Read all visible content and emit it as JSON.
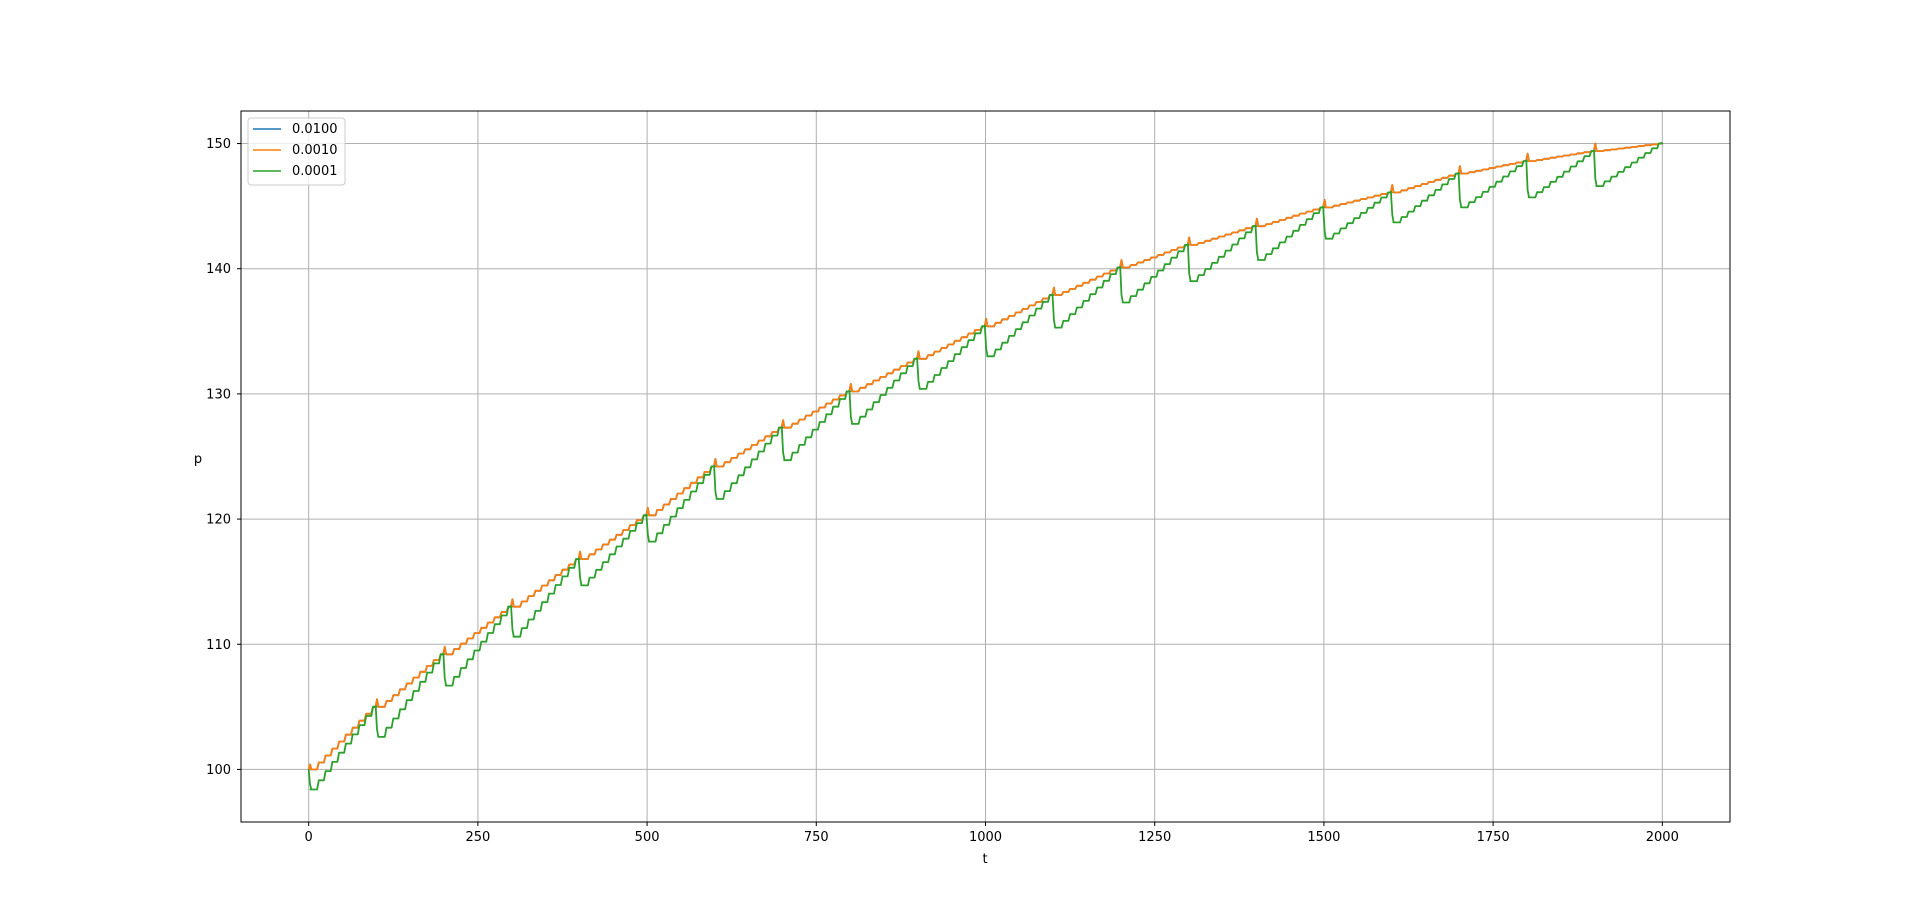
{
  "chart_data": {
    "type": "line",
    "title": "",
    "xlabel": "t",
    "ylabel": "p",
    "xlim": [
      -100,
      2100
    ],
    "ylim": [
      95.8,
      152.6
    ],
    "xticks": [
      0,
      250,
      500,
      750,
      1000,
      1250,
      1500,
      1750,
      2000
    ],
    "yticks": [
      100,
      110,
      120,
      130,
      140,
      150
    ],
    "xtick_labels": [
      "0",
      "250",
      "500",
      "750",
      "1000",
      "1250",
      "1500",
      "1750",
      "2000"
    ],
    "ytick_labels": [
      "100",
      "110",
      "120",
      "130",
      "140",
      "150"
    ],
    "grid": true,
    "legend_position": "upper-left",
    "colors": [
      "#1f77b4",
      "#ff7f0e",
      "#2ca02c"
    ],
    "series": [
      {
        "name": "0.0100",
        "x": [
          0,
          100,
          200,
          300,
          400,
          500,
          600,
          700,
          800,
          900,
          1000,
          1100,
          1200,
          1300,
          1400,
          1500,
          1600,
          1700,
          1800,
          1900,
          2000
        ],
        "values": [
          100.0,
          105.0,
          109.2,
          113.0,
          116.8,
          120.3,
          124.2,
          127.3,
          130.2,
          132.8,
          135.4,
          137.9,
          140.1,
          141.9,
          143.4,
          144.9,
          146.1,
          147.6,
          148.6,
          149.4,
          150.0
        ]
      },
      {
        "name": "0.0010",
        "x": [
          0,
          100,
          200,
          300,
          400,
          500,
          600,
          700,
          800,
          900,
          1000,
          1100,
          1200,
          1300,
          1400,
          1500,
          1600,
          1700,
          1800,
          1900,
          2000
        ],
        "values": [
          100.0,
          105.0,
          109.2,
          113.0,
          116.8,
          120.3,
          124.2,
          127.3,
          130.2,
          132.8,
          135.4,
          137.9,
          140.1,
          141.9,
          143.4,
          144.9,
          146.1,
          147.6,
          148.6,
          149.4,
          150.0
        ]
      },
      {
        "name": "0.0001",
        "x": [
          0,
          100,
          200,
          300,
          400,
          500,
          600,
          700,
          800,
          900,
          1000,
          1100,
          1200,
          1300,
          1400,
          1500,
          1600,
          1700,
          1800,
          1900,
          2000
        ],
        "values": [
          100.0,
          105.0,
          109.2,
          113.0,
          116.8,
          120.3,
          124.2,
          127.3,
          130.2,
          132.8,
          135.4,
          137.9,
          140.1,
          141.9,
          143.4,
          144.9,
          146.1,
          147.6,
          148.6,
          149.4,
          150.0
        ],
        "cycle_minimum": [
          98.4,
          102.6,
          106.7,
          110.6,
          114.7,
          118.2,
          121.6,
          124.7,
          127.6,
          130.4,
          133.0,
          135.3,
          137.3,
          139.0,
          140.7,
          142.4,
          143.7,
          144.9,
          145.7,
          146.6
        ]
      }
    ]
  }
}
